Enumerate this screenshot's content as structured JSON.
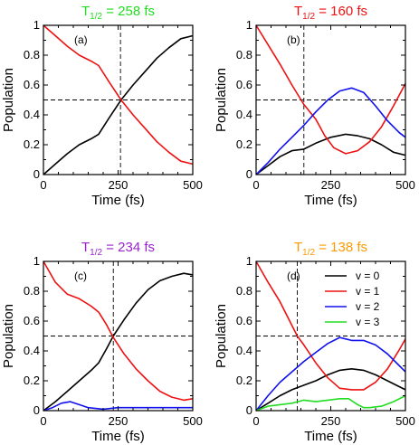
{
  "chart_data": [
    {
      "type": "line",
      "panel_label": "(a)",
      "title": {
        "main": "T",
        "sub": "1/2",
        "rest": " = 258 fs",
        "color": "#22dd22"
      },
      "xlabel": "Time (fs)",
      "ylabel": "Population",
      "xlim": [
        0,
        500
      ],
      "ylim": [
        0,
        1
      ],
      "xticks": [
        0,
        250,
        500
      ],
      "yticks": [
        0,
        0.2,
        0.4,
        0.6,
        0.8,
        1
      ],
      "ytick_labels": [
        "0",
        "0.2",
        "0.4",
        "0.6",
        "0.8",
        "1"
      ],
      "hline": 0.5,
      "vline": 258,
      "series": [
        {
          "color": "#000000",
          "x": [
            0,
            40,
            80,
            120,
            160,
            185,
            220,
            260,
            300,
            340,
            380,
            420,
            460,
            500
          ],
          "y": [
            0,
            0.07,
            0.14,
            0.2,
            0.24,
            0.27,
            0.38,
            0.5,
            0.6,
            0.69,
            0.78,
            0.85,
            0.91,
            0.93
          ]
        },
        {
          "color": "#ee1111",
          "x": [
            0,
            40,
            80,
            120,
            160,
            185,
            220,
            260,
            300,
            340,
            380,
            420,
            460,
            500
          ],
          "y": [
            1,
            0.93,
            0.86,
            0.8,
            0.76,
            0.73,
            0.62,
            0.5,
            0.4,
            0.31,
            0.22,
            0.15,
            0.09,
            0.07
          ]
        }
      ]
    },
    {
      "type": "line",
      "panel_label": "(b)",
      "title": {
        "main": "T",
        "sub": "1/2",
        "rest": " = 160 fs",
        "color": "#ee1111"
      },
      "xlabel": "Time (fs)",
      "ylabel": "Population",
      "xlim": [
        0,
        500
      ],
      "ylim": [
        0,
        1
      ],
      "xticks": [
        0,
        250,
        500
      ],
      "yticks": [
        0,
        0.2,
        0.4,
        0.6,
        0.8,
        1
      ],
      "ytick_labels": [
        "0",
        "0.2",
        "0.4",
        "0.6",
        "0.8",
        "1"
      ],
      "hline": 0.5,
      "vline": 160,
      "series": [
        {
          "color": "#000000",
          "x": [
            0,
            40,
            80,
            120,
            160,
            200,
            250,
            300,
            340,
            380,
            420,
            460,
            500
          ],
          "y": [
            0,
            0.06,
            0.12,
            0.16,
            0.17,
            0.21,
            0.25,
            0.27,
            0.26,
            0.24,
            0.2,
            0.15,
            0.13
          ]
        },
        {
          "color": "#ee1111",
          "x": [
            0,
            40,
            80,
            120,
            160,
            200,
            230,
            260,
            300,
            340,
            380,
            420,
            460,
            500
          ],
          "y": [
            1,
            0.87,
            0.74,
            0.6,
            0.47,
            0.37,
            0.26,
            0.18,
            0.14,
            0.16,
            0.22,
            0.32,
            0.46,
            0.61
          ]
        },
        {
          "color": "#1111ee",
          "x": [
            0,
            40,
            80,
            120,
            160,
            200,
            240,
            280,
            320,
            360,
            400,
            440,
            480,
            500
          ],
          "y": [
            0,
            0.08,
            0.17,
            0.25,
            0.33,
            0.42,
            0.5,
            0.56,
            0.58,
            0.55,
            0.46,
            0.36,
            0.28,
            0.25
          ]
        }
      ]
    },
    {
      "type": "line",
      "panel_label": "(c)",
      "title": {
        "main": "T",
        "sub": "1/2",
        "rest": " = 234 fs",
        "color": "#9922cc"
      },
      "xlabel": "Time (fs)",
      "ylabel": "Population",
      "xlim": [
        0,
        500
      ],
      "ylim": [
        0,
        1
      ],
      "xticks": [
        0,
        250,
        500
      ],
      "yticks": [
        0,
        0.2,
        0.4,
        0.6,
        0.8,
        1
      ],
      "ytick_labels": [
        "0",
        "0.2",
        "0.4",
        "0.6",
        "0.8",
        "1"
      ],
      "hline": 0.5,
      "vline": 234,
      "series": [
        {
          "color": "#000000",
          "x": [
            0,
            40,
            80,
            120,
            160,
            185,
            210,
            234,
            270,
            310,
            350,
            390,
            430,
            470,
            500
          ],
          "y": [
            0,
            0.06,
            0.13,
            0.2,
            0.27,
            0.32,
            0.41,
            0.5,
            0.61,
            0.72,
            0.81,
            0.87,
            0.9,
            0.92,
            0.91
          ]
        },
        {
          "color": "#ee1111",
          "x": [
            0,
            40,
            80,
            120,
            160,
            185,
            210,
            234,
            270,
            310,
            350,
            390,
            430,
            470,
            500
          ],
          "y": [
            1,
            0.86,
            0.78,
            0.75,
            0.7,
            0.66,
            0.58,
            0.49,
            0.38,
            0.28,
            0.2,
            0.13,
            0.09,
            0.07,
            0.08
          ]
        },
        {
          "color": "#1111ee",
          "x": [
            0,
            30,
            60,
            90,
            120,
            150,
            200,
            250,
            300,
            350,
            400,
            450,
            500
          ],
          "y": [
            0,
            0.02,
            0.05,
            0.06,
            0.04,
            0.02,
            0.01,
            0.02,
            0.02,
            0.02,
            0.02,
            0.02,
            0.02
          ]
        }
      ]
    },
    {
      "type": "line",
      "panel_label": "(d)",
      "title": {
        "main": "T",
        "sub": "1/2",
        "rest": " = 138 fs",
        "color": "#ff9900"
      },
      "xlabel": "Time (fs)",
      "ylabel": "Population",
      "xlim": [
        0,
        500
      ],
      "ylim": [
        0,
        1
      ],
      "xticks": [
        0,
        250,
        500
      ],
      "yticks": [
        0,
        0.2,
        0.4,
        0.6,
        0.8,
        1
      ],
      "ytick_labels": [
        "0",
        "0.2",
        "0.4",
        "0.6",
        "0.8",
        "1"
      ],
      "hline": 0.5,
      "vline": 138,
      "legend": {
        "placement": "top-right"
      },
      "series": [
        {
          "name": "v = 0",
          "color": "#000000",
          "x": [
            0,
            40,
            80,
            120,
            160,
            200,
            240,
            280,
            320,
            360,
            400,
            440,
            480,
            500
          ],
          "y": [
            0,
            0.05,
            0.1,
            0.14,
            0.17,
            0.2,
            0.24,
            0.27,
            0.28,
            0.27,
            0.24,
            0.2,
            0.16,
            0.14
          ]
        },
        {
          "name": "v = 1",
          "color": "#ee1111",
          "x": [
            0,
            40,
            80,
            120,
            138,
            160,
            200,
            240,
            280,
            320,
            360,
            400,
            440,
            480,
            500
          ],
          "y": [
            1,
            0.86,
            0.73,
            0.57,
            0.5,
            0.44,
            0.32,
            0.22,
            0.15,
            0.14,
            0.14,
            0.19,
            0.28,
            0.41,
            0.48
          ]
        },
        {
          "name": "v = 2",
          "color": "#1111ee",
          "x": [
            0,
            40,
            80,
            120,
            160,
            200,
            240,
            280,
            320,
            360,
            400,
            440,
            480,
            500
          ],
          "y": [
            0,
            0.1,
            0.19,
            0.26,
            0.33,
            0.39,
            0.45,
            0.49,
            0.47,
            0.47,
            0.44,
            0.38,
            0.3,
            0.26
          ]
        },
        {
          "name": "v = 3",
          "color": "#22dd22",
          "x": [
            0,
            40,
            80,
            120,
            160,
            200,
            240,
            280,
            310,
            340,
            360,
            380,
            420,
            460,
            500
          ],
          "y": [
            0,
            0.03,
            0.04,
            0.05,
            0.07,
            0.06,
            0.07,
            0.08,
            0.08,
            0.04,
            0.02,
            0.02,
            0.03,
            0.06,
            0.1
          ]
        }
      ]
    }
  ]
}
